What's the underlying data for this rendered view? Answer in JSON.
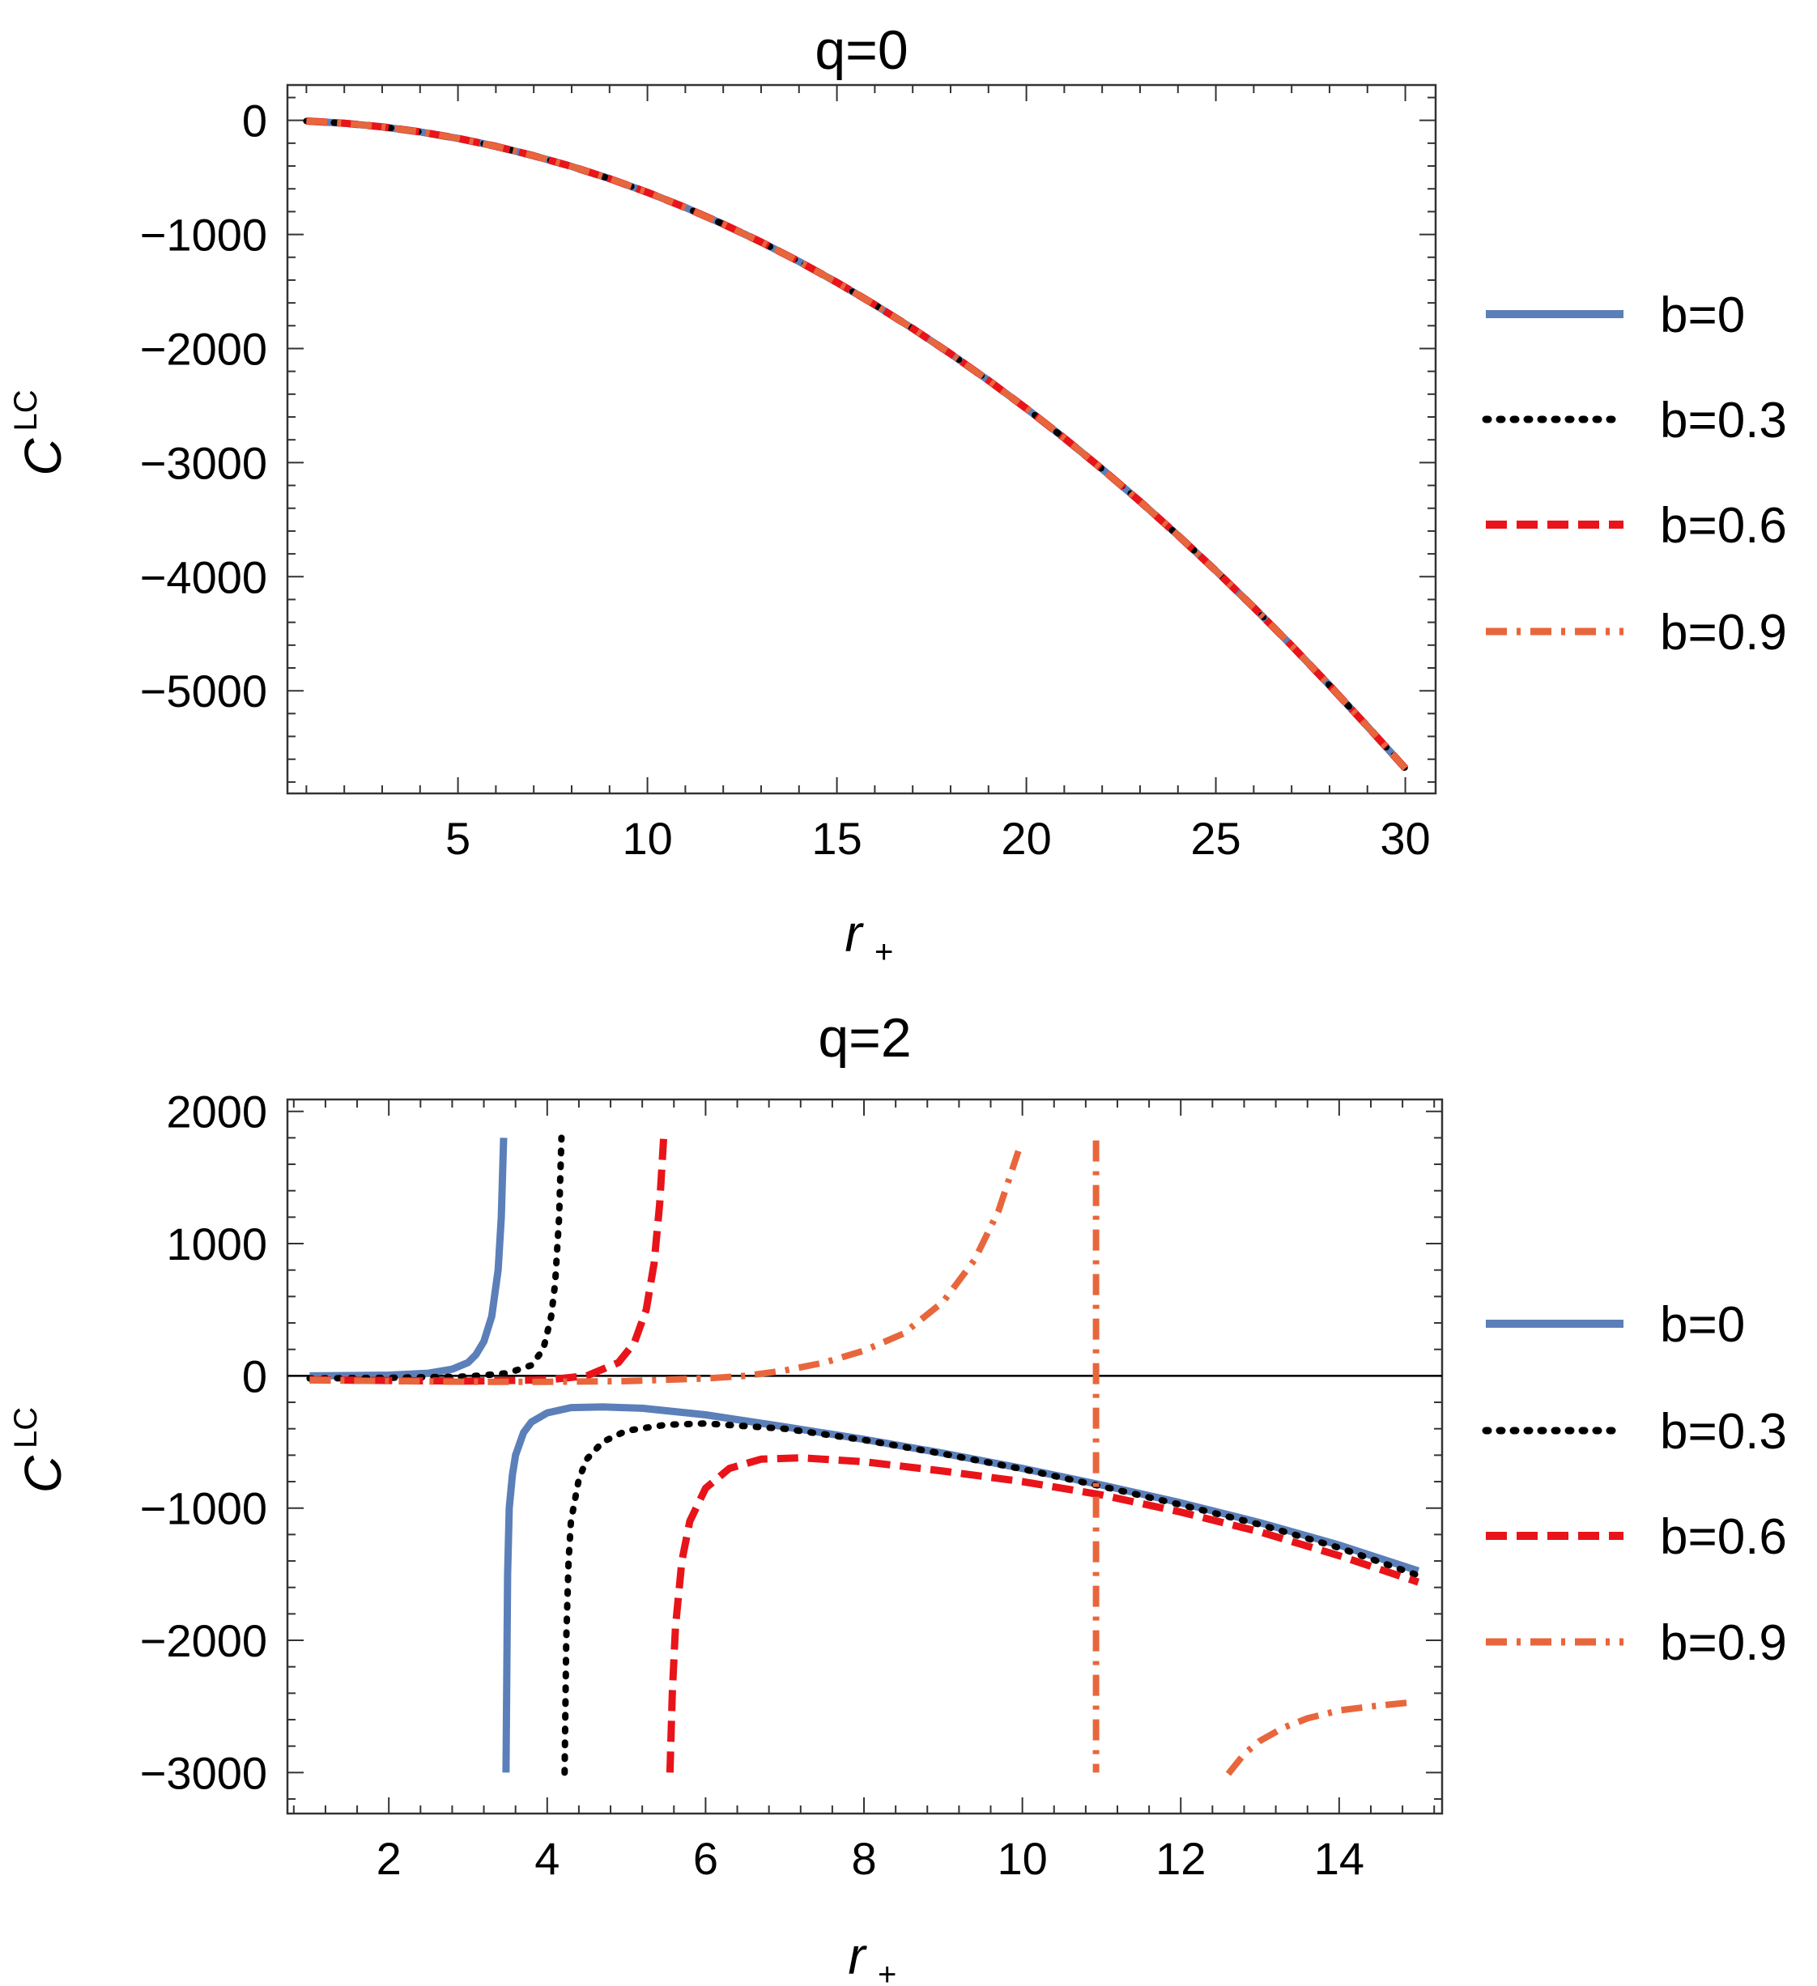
{
  "chart_data": [
    {
      "type": "line",
      "title": "q=0",
      "xlabel": "r",
      "xlabel_sub": "+",
      "ylabel": "C",
      "ylabel_sup": "LC",
      "xlim": [
        0.5,
        30.8
      ],
      "ylim": [
        -5900,
        310
      ],
      "xticks": [
        5,
        10,
        15,
        20,
        25,
        30
      ],
      "yticks": [
        0,
        -1000,
        -2000,
        -3000,
        -4000,
        -5000
      ],
      "xtick_labels": [
        "5",
        "10",
        "15",
        "20",
        "25",
        "30"
      ],
      "ytick_labels": [
        "0",
        "−1000",
        "−2000",
        "−3000",
        "−4000",
        "−5000"
      ],
      "grid": false,
      "legend_position": "right",
      "series": [
        {
          "name": "b=0",
          "color": "#5b7fb9",
          "style": "solid",
          "x": [
            1,
            2,
            3,
            4,
            5,
            6,
            7,
            8,
            9,
            10,
            11,
            12,
            13,
            14,
            15,
            16,
            17,
            18,
            19,
            20,
            21,
            22,
            23,
            24,
            25,
            26,
            27,
            28,
            29,
            30
          ],
          "y": [
            -6,
            -25,
            -57,
            -101,
            -158,
            -227,
            -310,
            -404,
            -511,
            -631,
            -764,
            -909,
            -1067,
            -1237,
            -1420,
            -1616,
            -1825,
            -2046,
            -2280,
            -2526,
            -2785,
            -3057,
            -3341,
            -3638,
            -3948,
            -4270,
            -4605,
            -4953,
            -5313,
            -5680
          ]
        },
        {
          "name": "b=0.3",
          "color": "#000000",
          "style": "dotted",
          "x": [
            1,
            2,
            3,
            4,
            5,
            6,
            7,
            8,
            9,
            10,
            11,
            12,
            13,
            14,
            15,
            16,
            17,
            18,
            19,
            20,
            21,
            22,
            23,
            24,
            25,
            26,
            27,
            28,
            29,
            30
          ],
          "y": [
            -6,
            -25,
            -57,
            -101,
            -158,
            -227,
            -310,
            -404,
            -511,
            -631,
            -764,
            -909,
            -1067,
            -1237,
            -1420,
            -1616,
            -1825,
            -2046,
            -2280,
            -2526,
            -2785,
            -3057,
            -3341,
            -3638,
            -3948,
            -4270,
            -4605,
            -4953,
            -5313,
            -5680
          ]
        },
        {
          "name": "b=0.6",
          "color": "#e8141a",
          "style": "dashed",
          "x": [
            1,
            2,
            3,
            4,
            5,
            6,
            7,
            8,
            9,
            10,
            11,
            12,
            13,
            14,
            15,
            16,
            17,
            18,
            19,
            20,
            21,
            22,
            23,
            24,
            25,
            26,
            27,
            28,
            29,
            30
          ],
          "y": [
            -6,
            -25,
            -57,
            -101,
            -158,
            -227,
            -310,
            -404,
            -511,
            -631,
            -764,
            -909,
            -1067,
            -1237,
            -1420,
            -1616,
            -1825,
            -2046,
            -2280,
            -2526,
            -2785,
            -3057,
            -3341,
            -3638,
            -3948,
            -4270,
            -4605,
            -4953,
            -5313,
            -5680
          ]
        },
        {
          "name": "b=0.9",
          "color": "#e8663c",
          "style": "dashdot",
          "x": [
            1,
            2,
            3,
            4,
            5,
            6,
            7,
            8,
            9,
            10,
            11,
            12,
            13,
            14,
            15,
            16,
            17,
            18,
            19,
            20,
            21,
            22,
            23,
            24,
            25,
            26,
            27,
            28,
            29,
            30
          ],
          "y": [
            -6,
            -25,
            -57,
            -101,
            -158,
            -227,
            -310,
            -404,
            -511,
            -631,
            -764,
            -909,
            -1067,
            -1237,
            -1420,
            -1616,
            -1825,
            -2046,
            -2280,
            -2526,
            -2785,
            -3057,
            -3341,
            -3638,
            -3948,
            -4270,
            -4605,
            -4953,
            -5313,
            -5680
          ]
        }
      ]
    },
    {
      "type": "line",
      "title": "q=2",
      "xlabel": "r",
      "xlabel_sub": "+",
      "ylabel": "C",
      "ylabel_sup": "LC",
      "xlim": [
        0.72,
        15.3
      ],
      "ylim": [
        -3310,
        2090
      ],
      "xticks": [
        2,
        4,
        6,
        8,
        10,
        12,
        14
      ],
      "yticks": [
        2000,
        1000,
        0,
        -1000,
        -2000,
        -3000
      ],
      "xtick_labels": [
        "2",
        "4",
        "6",
        "8",
        "10",
        "12",
        "14"
      ],
      "ytick_labels": [
        "2000",
        "1000",
        "0",
        "−1000",
        "−2000",
        "−3000"
      ],
      "grid": false,
      "legend_position": "right",
      "series": [
        {
          "name": "b=0",
          "color": "#5b7fb9",
          "style": "solid",
          "segments": [
            {
              "x": [
                1,
                1.5,
                2,
                2.5,
                2.8,
                3.0,
                3.1,
                3.2,
                3.3,
                3.38,
                3.42,
                3.45
              ],
              "y": [
                0,
                2,
                5,
                20,
                50,
                100,
                160,
                260,
                450,
                800,
                1200,
                1800
              ]
            },
            {
              "x": [
                3.48,
                3.5,
                3.52,
                3.56,
                3.6,
                3.7,
                3.8,
                4.0,
                4.3,
                4.7,
                5.2,
                6,
                7,
                8,
                9,
                10,
                11,
                12,
                13,
                14,
                15
              ],
              "y": [
                -3000,
                -1500,
                -1000,
                -750,
                -600,
                -430,
                -350,
                -280,
                -240,
                -235,
                -245,
                -295,
                -385,
                -480,
                -585,
                -700,
                -825,
                -960,
                -1110,
                -1280,
                -1475
              ]
            }
          ]
        },
        {
          "name": "b=0.3",
          "color": "#000000",
          "style": "dotted",
          "segments": [
            {
              "x": [
                1,
                2,
                3,
                3.5,
                3.8,
                3.95,
                4.05,
                4.1,
                4.15,
                4.18
              ],
              "y": [
                -20,
                -15,
                -5,
                20,
                80,
                200,
                450,
                700,
                1200,
                1800
              ]
            },
            {
              "x": [
                4.22,
                4.24,
                4.27,
                4.3,
                4.4,
                4.5,
                4.7,
                5,
                5.5,
                6,
                7,
                8,
                9,
                10,
                11,
                12,
                13,
                14,
                15
              ],
              "y": [
                -3000,
                -2000,
                -1400,
                -1100,
                -780,
                -630,
                -500,
                -415,
                -370,
                -360,
                -400,
                -485,
                -590,
                -705,
                -835,
                -975,
                -1125,
                -1300,
                -1510
              ]
            }
          ]
        },
        {
          "name": "b=0.6",
          "color": "#e8141a",
          "style": "dashed",
          "segments": [
            {
              "x": [
                1,
                2,
                3,
                4,
                4.5,
                4.9,
                5.1,
                5.25,
                5.35,
                5.42,
                5.47
              ],
              "y": [
                -30,
                -35,
                -40,
                -30,
                0,
                100,
                250,
                500,
                850,
                1300,
                1800
              ]
            },
            {
              "x": [
                5.55,
                5.58,
                5.62,
                5.7,
                5.8,
                6.0,
                6.3,
                6.7,
                7.2,
                8,
                9,
                10,
                11,
                12,
                13,
                14,
                15
              ],
              "y": [
                -3000,
                -2400,
                -1900,
                -1400,
                -1100,
                -850,
                -700,
                -630,
                -620,
                -650,
                -720,
                -800,
                -900,
                -1030,
                -1180,
                -1360,
                -1560
              ]
            }
          ]
        },
        {
          "name": "b=0.9",
          "color": "#e8663c",
          "style": "dashdot",
          "segments": [
            {
              "x": [
                1,
                2,
                3,
                4,
                5,
                6,
                6.5,
                7,
                7.5,
                8,
                8.5,
                9,
                9.4,
                9.7,
                9.95
              ],
              "y": [
                -30,
                -40,
                -45,
                -45,
                -40,
                -20,
                0,
                40,
                100,
                190,
                320,
                560,
                880,
                1250,
                1700
              ]
            },
            {
              "x": [
                10.93,
                10.93
              ],
              "y": [
                1780,
                -3000
              ]
            },
            {
              "x": [
                12.6,
                12.8,
                13,
                13.3,
                13.6,
                14,
                14.4,
                14.9
              ],
              "y": [
                -3010,
                -2860,
                -2760,
                -2660,
                -2590,
                -2530,
                -2500,
                -2470
              ]
            }
          ]
        }
      ]
    }
  ]
}
